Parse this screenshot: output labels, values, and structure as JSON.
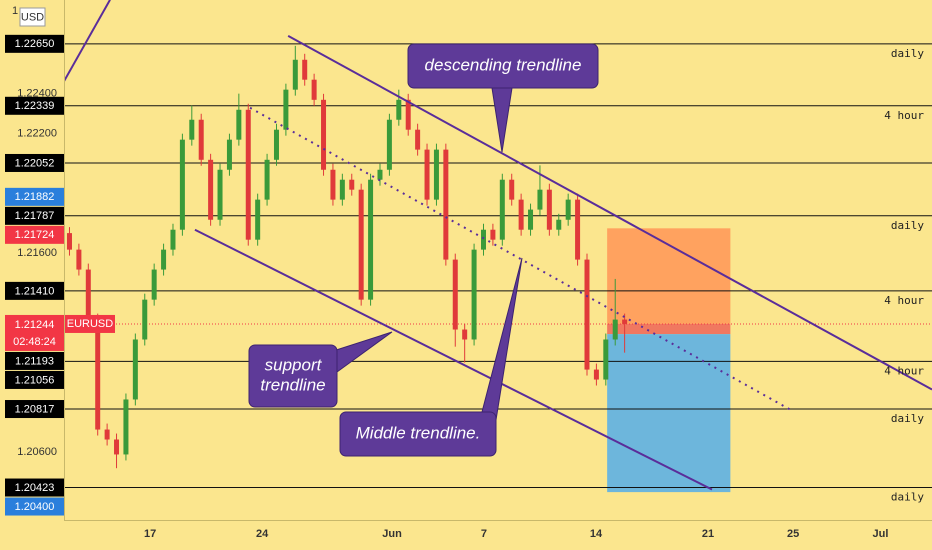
{
  "chart_data": {
    "type": "candlestick",
    "scale_label": "1",
    "currency": "USD",
    "up_color": "#3a9a3a",
    "down_color": "#e03a3a",
    "ylim": [
      1.2026,
      1.2287
    ],
    "yticks": [
      {
        "value": 1.224,
        "label": "1.22400"
      },
      {
        "value": 1.222,
        "label": "1.22200"
      },
      {
        "value": 1.216,
        "label": "1.21600"
      },
      {
        "value": 1.206,
        "label": "1.20600"
      }
    ],
    "xlim": [
      0,
      38.7
    ],
    "xticks": [
      {
        "value": 3.8,
        "label": "17"
      },
      {
        "value": 8.8,
        "label": "24"
      },
      {
        "value": 14.6,
        "label": "Jun"
      },
      {
        "value": 18.7,
        "label": "7"
      },
      {
        "value": 23.7,
        "label": "14"
      },
      {
        "value": 28.7,
        "label": "21"
      },
      {
        "value": 32.5,
        "label": "25"
      },
      {
        "value": 36.4,
        "label": "Jul"
      }
    ],
    "x": [
      0.2,
      0.62,
      1.04,
      1.46,
      1.88,
      2.3,
      2.72,
      3.14,
      3.56,
      3.98,
      4.4,
      4.82,
      5.24,
      5.66,
      6.08,
      6.5,
      6.92,
      7.34,
      7.76,
      8.18,
      8.6,
      9.02,
      9.44,
      9.86,
      10.28,
      10.7,
      11.12,
      11.54,
      11.96,
      12.38,
      12.8,
      13.22,
      13.64,
      14.06,
      14.48,
      14.9,
      15.32,
      15.74,
      16.16,
      16.58,
      17.0,
      17.42,
      17.84,
      18.26,
      18.68,
      19.1,
      19.52,
      19.94,
      20.36,
      20.78,
      21.2,
      21.62,
      22.04,
      22.46,
      22.88,
      23.3,
      23.72,
      24.14,
      24.56,
      24.98
    ],
    "open": [
      1.217,
      1.21617,
      1.21517,
      1.21266,
      1.20714,
      1.20664,
      1.20589,
      1.20865,
      1.21166,
      1.21366,
      1.21517,
      1.21617,
      1.21717,
      1.22169,
      1.22269,
      1.22068,
      1.21767,
      1.22018,
      1.22169,
      1.22319,
      1.21667,
      1.21868,
      1.22068,
      1.22219,
      1.2242,
      1.2257,
      1.2247,
      1.22369,
      1.22018,
      1.21868,
      1.21968,
      1.21918,
      1.21366,
      1.21968,
      1.22018,
      1.22269,
      1.22369,
      1.22219,
      1.22119,
      1.21868,
      1.22119,
      1.21567,
      1.21216,
      1.21166,
      1.21617,
      1.21717,
      1.21667,
      1.21968,
      1.21868,
      1.21717,
      1.21818,
      1.21918,
      1.21717,
      1.21767,
      1.21868,
      1.21567,
      1.21015,
      1.20965,
      1.21166,
      1.21266
    ],
    "high": [
      1.2173,
      1.21647,
      1.21547,
      1.21296,
      1.20744,
      1.20694,
      1.20895,
      1.21196,
      1.21396,
      1.21547,
      1.21647,
      1.21747,
      1.22199,
      1.2234,
      1.22299,
      1.22098,
      1.22048,
      1.22199,
      1.224,
      1.22349,
      1.21898,
      1.22098,
      1.22249,
      1.2245,
      1.2264,
      1.226,
      1.225,
      1.22399,
      1.22048,
      1.21998,
      1.21998,
      1.21948,
      1.21998,
      1.22048,
      1.22299,
      1.2242,
      1.22399,
      1.22249,
      1.22149,
      1.22149,
      1.22149,
      1.21597,
      1.21246,
      1.21647,
      1.21747,
      1.21747,
      1.21998,
      1.21998,
      1.21898,
      1.21848,
      1.2204,
      1.21948,
      1.21797,
      1.21898,
      1.21898,
      1.21597,
      1.21045,
      1.21196,
      1.2147,
      1.21296
    ],
    "low": [
      1.21587,
      1.21487,
      1.21236,
      1.20684,
      1.20634,
      1.2052,
      1.20559,
      1.20835,
      1.21136,
      1.21336,
      1.21487,
      1.21587,
      1.21687,
      1.22139,
      1.22038,
      1.21737,
      1.21737,
      1.21988,
      1.22139,
      1.21637,
      1.21637,
      1.21838,
      1.22038,
      1.22189,
      1.2239,
      1.2244,
      1.22339,
      1.21988,
      1.21838,
      1.21838,
      1.21888,
      1.21336,
      1.21336,
      1.21938,
      1.21988,
      1.22239,
      1.22189,
      1.22089,
      1.21838,
      1.21838,
      1.21537,
      1.2113,
      1.2105,
      1.21136,
      1.21587,
      1.21637,
      1.21637,
      1.21838,
      1.21687,
      1.21687,
      1.21788,
      1.21687,
      1.21687,
      1.21737,
      1.21537,
      1.20985,
      1.20935,
      1.20935,
      1.21136,
      1.211
    ],
    "close": [
      1.21617,
      1.21517,
      1.21266,
      1.20714,
      1.20664,
      1.20589,
      1.20865,
      1.21166,
      1.21366,
      1.21517,
      1.21617,
      1.21717,
      1.22169,
      1.22269,
      1.22068,
      1.21767,
      1.22018,
      1.22169,
      1.22319,
      1.21667,
      1.21868,
      1.22068,
      1.22219,
      1.2242,
      1.2257,
      1.2247,
      1.22369,
      1.22018,
      1.21868,
      1.21968,
      1.21918,
      1.21366,
      1.21968,
      1.22018,
      1.22269,
      1.22369,
      1.22219,
      1.22119,
      1.21868,
      1.22119,
      1.21567,
      1.21216,
      1.21166,
      1.21617,
      1.21717,
      1.21667,
      1.21968,
      1.21868,
      1.21717,
      1.21818,
      1.21918,
      1.21717,
      1.21767,
      1.21868,
      1.21567,
      1.21015,
      1.20965,
      1.21166,
      1.21266,
      1.21244
    ],
    "levels": [
      {
        "value": 1.2265,
        "label": "1.22650",
        "color": "#000000",
        "line": true,
        "note": "daily"
      },
      {
        "value": 1.22339,
        "label": "1.22339",
        "color": "#000000",
        "line": true,
        "note": "4 hour"
      },
      {
        "value": 1.22052,
        "label": "1.22052",
        "color": "#000000",
        "line": true
      },
      {
        "value": 1.21882,
        "label": "1.21882",
        "color": "#2a7fdc",
        "line": false
      },
      {
        "value": 1.21787,
        "label": "1.21787",
        "color": "#000000",
        "line": true,
        "note": "daily"
      },
      {
        "value": 1.21724,
        "label": "1.21724",
        "color": "#f23645",
        "line": false
      },
      {
        "value": 1.2141,
        "label": "1.21410",
        "color": "#000000",
        "line": true,
        "note": "4 hour"
      },
      {
        "value": 1.21193,
        "label": "1.21193",
        "color": "#000000",
        "line": false
      },
      {
        "value": 1.21056,
        "label": "1.21056",
        "color": "#000000",
        "line": true,
        "note": "4 hour"
      },
      {
        "value": 1.20817,
        "label": "1.20817",
        "color": "#000000",
        "line": true,
        "note": "daily"
      },
      {
        "value": 1.20423,
        "label": "1.20423",
        "color": "#000000",
        "line": true,
        "note": "daily"
      },
      {
        "value": 1.204,
        "label": "1.20400",
        "color": "#2a7fdc",
        "line": false
      }
    ],
    "current": {
      "symbol": "EURUSD",
      "value": 1.21244,
      "label": "1.21244",
      "countdown": "02:48:24",
      "color": "#f23645"
    },
    "position": {
      "x_start": 24.2,
      "x_end": 29.7
    },
    "trendlines": [
      {
        "name": "descending",
        "x": [
          9.96,
          38.7
        ],
        "y": [
          1.2269,
          1.20915
        ],
        "dotted": false
      },
      {
        "name": "support",
        "x": [
          5.8,
          28.88
        ],
        "y": [
          1.21717,
          1.20413
        ],
        "dotted": false
      },
      {
        "name": "middle",
        "x": [
          8.26,
          32.37
        ],
        "y": [
          1.22329,
          1.20814
        ],
        "dotted": true
      },
      {
        "name": "old",
        "x": [
          -0.13,
          2.01
        ],
        "y": [
          1.22445,
          1.22871
        ],
        "dotted": false
      }
    ],
    "annotations": [
      {
        "text": [
          "descending trendline"
        ]
      },
      {
        "text": [
          "support",
          "trendline"
        ]
      },
      {
        "text": [
          "Middle trendline."
        ]
      }
    ]
  }
}
